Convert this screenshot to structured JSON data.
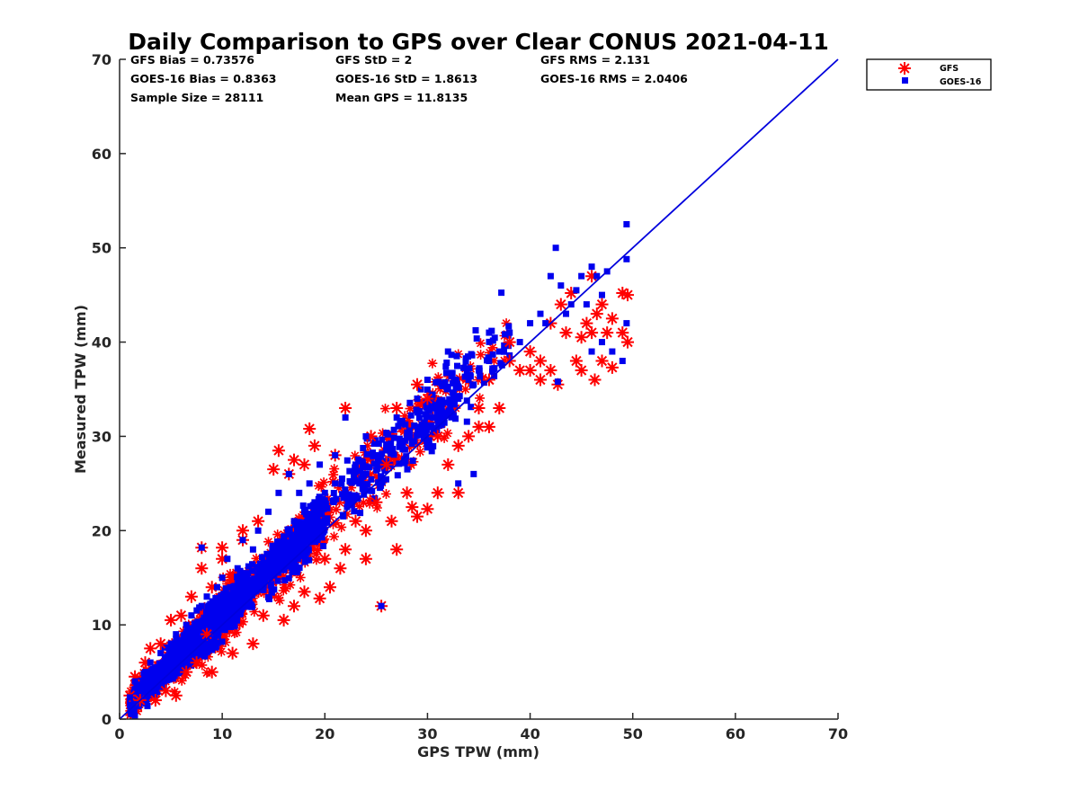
{
  "chart_data": {
    "type": "scatter",
    "title": "Daily Comparison to GPS over Clear CONUS 2021-04-11",
    "xlabel": "GPS TPW (mm)",
    "ylabel": "Measured TPW (mm)",
    "xlim": [
      0,
      70
    ],
    "ylim": [
      0,
      70
    ],
    "xticks": [
      "0",
      "10",
      "20",
      "30",
      "40",
      "50",
      "60",
      "70"
    ],
    "yticks": [
      "0",
      "10",
      "20",
      "30",
      "40",
      "50",
      "60",
      "70"
    ],
    "legend_position": "top-right, outside plot",
    "annotations": [
      "GFS Bias = 0.73576",
      "GFS StD = 2",
      "GFS RMS = 2.131",
      "GOES-16 Bias = 0.8363",
      "GOES-16 StD = 1.8613",
      "GOES-16 RMS = 2.0406",
      "Sample Size = 28111",
      "Mean GPS = 11.8135"
    ],
    "reference_line": {
      "name": "1:1 line",
      "x": [
        0,
        70
      ],
      "y": [
        0,
        70
      ],
      "color": "#0000dd"
    },
    "series": [
      {
        "name": "GFS",
        "marker": "asterisk",
        "color": "#ff0000",
        "points": [
          [
            1,
            2.5
          ],
          [
            1.5,
            4.5
          ],
          [
            2,
            2
          ],
          [
            2.5,
            6
          ],
          [
            3,
            7.5
          ],
          [
            3.5,
            2
          ],
          [
            4,
            8
          ],
          [
            4.5,
            3
          ],
          [
            5,
            10.5
          ],
          [
            5.5,
            2.5
          ],
          [
            6,
            11
          ],
          [
            6.5,
            5
          ],
          [
            7,
            13
          ],
          [
            7.5,
            6
          ],
          [
            8,
            16
          ],
          [
            8,
            18.2
          ],
          [
            8.5,
            9
          ],
          [
            9,
            14
          ],
          [
            9,
            5
          ],
          [
            10,
            18.2
          ],
          [
            10,
            17
          ],
          [
            11,
            7
          ],
          [
            12,
            20
          ],
          [
            12,
            19
          ],
          [
            13,
            8
          ],
          [
            13.5,
            21
          ],
          [
            14,
            11
          ],
          [
            15,
            26.5
          ],
          [
            15.5,
            28.5
          ],
          [
            16,
            10.5
          ],
          [
            16.5,
            26
          ],
          [
            17,
            27.5
          ],
          [
            17,
            12
          ],
          [
            18,
            13.5
          ],
          [
            18,
            27
          ],
          [
            18.5,
            30.8
          ],
          [
            19,
            29
          ],
          [
            19.5,
            12.8
          ],
          [
            20,
            17
          ],
          [
            20.5,
            14
          ],
          [
            21,
            28
          ],
          [
            21.5,
            16
          ],
          [
            22,
            33
          ],
          [
            22,
            18
          ],
          [
            23,
            21
          ],
          [
            24,
            20
          ],
          [
            24,
            17
          ],
          [
            24.5,
            30
          ],
          [
            25,
            23
          ],
          [
            25.5,
            12
          ],
          [
            26,
            27
          ],
          [
            26.5,
            21
          ],
          [
            27,
            33
          ],
          [
            27,
            18
          ],
          [
            28,
            24
          ],
          [
            28.5,
            22.5
          ],
          [
            29,
            35.5
          ],
          [
            29,
            21.5
          ],
          [
            30,
            22.3
          ],
          [
            30,
            34
          ],
          [
            31,
            30
          ],
          [
            31,
            24
          ],
          [
            32,
            27
          ],
          [
            33,
            24
          ],
          [
            33,
            29
          ],
          [
            34,
            30
          ],
          [
            35,
            31
          ],
          [
            35,
            33
          ],
          [
            36,
            36
          ],
          [
            36,
            31
          ],
          [
            37,
            33
          ],
          [
            38,
            40
          ],
          [
            38,
            38
          ],
          [
            39,
            37
          ],
          [
            40,
            37
          ],
          [
            40,
            39
          ],
          [
            41,
            38
          ],
          [
            41,
            36
          ],
          [
            42,
            42
          ],
          [
            42,
            37
          ],
          [
            42.7,
            35.5
          ],
          [
            43,
            44
          ],
          [
            43.5,
            41
          ],
          [
            44,
            45.2
          ],
          [
            44.5,
            38
          ],
          [
            45,
            40.5
          ],
          [
            45,
            37
          ],
          [
            45.5,
            42
          ],
          [
            46,
            41
          ],
          [
            46.3,
            36
          ],
          [
            46.5,
            43
          ],
          [
            47,
            44
          ],
          [
            47,
            38
          ],
          [
            47.5,
            41
          ],
          [
            48,
            37.3
          ],
          [
            48,
            42.5
          ],
          [
            49,
            45.2
          ],
          [
            49,
            41
          ],
          [
            49.5,
            40
          ],
          [
            49.5,
            45
          ],
          [
            46,
            47
          ]
        ]
      },
      {
        "name": "GOES-16",
        "marker": "square",
        "color": "#0000ee",
        "points": [
          [
            1,
            2.3
          ],
          [
            1.5,
            4
          ],
          [
            2,
            3
          ],
          [
            2.5,
            5
          ],
          [
            3,
            6
          ],
          [
            3,
            4
          ],
          [
            4,
            7
          ],
          [
            4.5,
            5
          ],
          [
            5,
            8
          ],
          [
            5.5,
            9
          ],
          [
            6,
            7
          ],
          [
            6.5,
            10
          ],
          [
            7,
            11
          ],
          [
            7.5,
            9
          ],
          [
            8,
            12
          ],
          [
            8,
            18.2
          ],
          [
            8.5,
            13
          ],
          [
            9,
            11
          ],
          [
            9.5,
            14
          ],
          [
            10,
            15
          ],
          [
            10.5,
            17
          ],
          [
            11,
            13
          ],
          [
            11.5,
            16
          ],
          [
            12,
            19
          ],
          [
            12,
            15
          ],
          [
            13,
            18
          ],
          [
            13.5,
            20
          ],
          [
            14,
            16
          ],
          [
            14.5,
            22
          ],
          [
            15,
            18
          ],
          [
            15.5,
            24
          ],
          [
            16,
            19
          ],
          [
            16.5,
            26
          ],
          [
            17,
            21
          ],
          [
            17.5,
            24
          ],
          [
            18,
            22
          ],
          [
            18.5,
            25
          ],
          [
            19,
            23
          ],
          [
            19.5,
            27
          ],
          [
            20,
            24
          ],
          [
            21,
            25
          ],
          [
            21,
            28
          ],
          [
            22,
            32
          ],
          [
            22,
            24
          ],
          [
            23,
            27
          ],
          [
            24,
            30
          ],
          [
            25,
            28
          ],
          [
            25.5,
            12
          ],
          [
            26,
            29
          ],
          [
            27,
            32
          ],
          [
            28,
            30
          ],
          [
            29,
            34
          ],
          [
            30,
            31
          ],
          [
            30,
            36
          ],
          [
            31,
            33
          ],
          [
            32,
            35
          ],
          [
            32,
            39
          ],
          [
            33,
            25
          ],
          [
            33,
            34
          ],
          [
            34,
            36
          ],
          [
            34.5,
            26
          ],
          [
            35,
            37
          ],
          [
            36,
            38
          ],
          [
            36,
            41
          ],
          [
            37,
            39
          ],
          [
            38,
            41
          ],
          [
            39,
            40
          ],
          [
            40,
            42
          ],
          [
            41,
            43
          ],
          [
            41.5,
            42
          ],
          [
            42,
            47
          ],
          [
            42.5,
            50
          ],
          [
            43,
            46
          ],
          [
            43.5,
            43
          ],
          [
            44,
            44
          ],
          [
            44.5,
            45.5
          ],
          [
            45,
            47
          ],
          [
            45.5,
            44
          ],
          [
            46,
            48
          ],
          [
            46.5,
            47
          ],
          [
            47,
            45
          ],
          [
            47.5,
            47.5
          ],
          [
            48,
            39
          ],
          [
            49,
            38
          ],
          [
            49.4,
            52.5
          ],
          [
            49.4,
            48.8
          ],
          [
            49.4,
            42
          ],
          [
            42.7,
            35.8
          ],
          [
            46,
            39
          ],
          [
            47,
            40
          ]
        ]
      }
    ]
  },
  "legend": {
    "items": [
      {
        "label": "GFS",
        "marker": "asterisk",
        "color": "#ff0000"
      },
      {
        "label": "GOES-16",
        "marker": "square",
        "color": "#0000ee"
      }
    ]
  }
}
